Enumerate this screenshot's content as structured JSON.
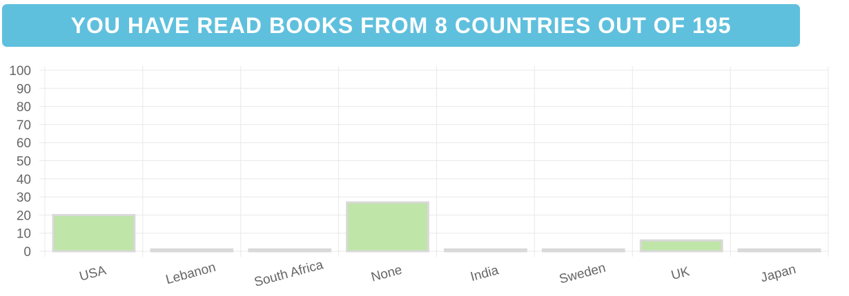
{
  "header": {
    "title": "YOU HAVE READ BOOKS FROM 8 COUNTRIES OUT OF 195"
  },
  "colors": {
    "banner": "#5fc0dd",
    "bar_fill": "#bfe5a9",
    "bar_border": "#d9d9d9",
    "grid": "#e8e8e8",
    "text": "#666666"
  },
  "chart_data": {
    "type": "bar",
    "categories": [
      "USA",
      "Lebanon",
      "South Africa",
      "None",
      "India",
      "Sweden",
      "UK",
      "Japan"
    ],
    "values": [
      20,
      1,
      1,
      27,
      1,
      1,
      6,
      1
    ],
    "title": "",
    "xlabel": "",
    "ylabel": "",
    "ylim": [
      0,
      100
    ],
    "yticks": [
      0,
      10,
      20,
      30,
      40,
      50,
      60,
      70,
      80,
      90,
      100
    ],
    "grid": true,
    "legend": "none"
  }
}
